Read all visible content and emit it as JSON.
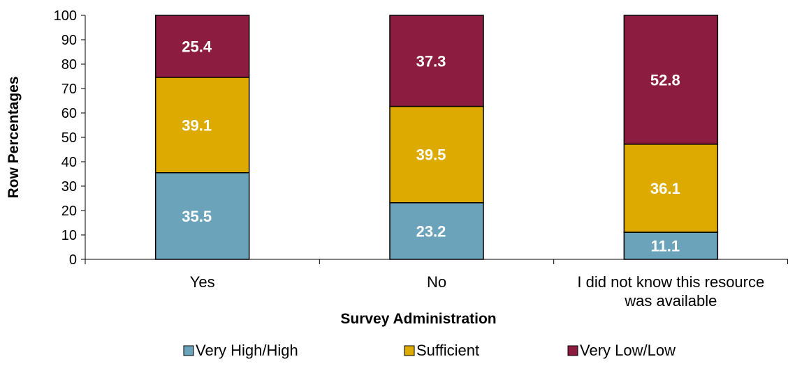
{
  "chart_data": {
    "type": "bar",
    "stacked": true,
    "categories": [
      [
        "Yes"
      ],
      [
        "No"
      ],
      [
        "I did not know this resource",
        "was available"
      ]
    ],
    "series": [
      {
        "name": "Very High/High",
        "color": "#6ba3ba",
        "values": [
          35.5,
          23.2,
          11.1
        ]
      },
      {
        "name": "Sufficient",
        "color": "#dcaa00",
        "values": [
          39.1,
          39.5,
          36.1
        ]
      },
      {
        "name": "Very Low/Low",
        "color": "#8c1d40",
        "values": [
          25.4,
          37.3,
          52.8
        ]
      }
    ],
    "xlabel": "Survey Administration",
    "ylabel": "Row Percentages",
    "ylim": [
      0,
      100
    ],
    "yticks": [
      0,
      10,
      20,
      30,
      40,
      50,
      60,
      70,
      80,
      90,
      100
    ],
    "legend_position": "bottom",
    "grid": false
  }
}
